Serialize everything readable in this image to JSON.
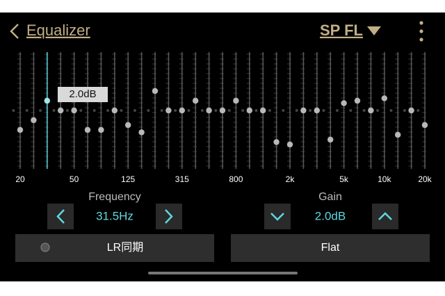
{
  "header": {
    "back_title": "Equalizer",
    "channel": "SP FL"
  },
  "equalizer": {
    "band_labels": [
      "20",
      null,
      null,
      null,
      "50",
      null,
      null,
      null,
      "125",
      null,
      null,
      null,
      "315",
      null,
      null,
      null,
      "800",
      null,
      null,
      null,
      "2k",
      null,
      null,
      null,
      "5k",
      null,
      null,
      "10k",
      null,
      null,
      "20k"
    ],
    "gains": [
      -4,
      -2,
      2,
      0,
      0,
      -4,
      -4,
      0,
      -3,
      -4.5,
      4,
      0,
      0,
      2,
      0,
      0,
      2,
      0,
      0,
      -6.5,
      -7,
      0,
      0,
      -6,
      1.5,
      2,
      0,
      2.5,
      -5,
      0,
      -3
    ],
    "ylim": [
      -12,
      12
    ],
    "tooltip": "2.0dB"
  },
  "controls": {
    "frequency_label": "Frequency",
    "frequency_value": "31.5Hz",
    "gain_label": "Gain",
    "gain_value": "2.0dB"
  },
  "buttons": {
    "lr_sync": "LR同期",
    "flat": "Flat"
  }
}
